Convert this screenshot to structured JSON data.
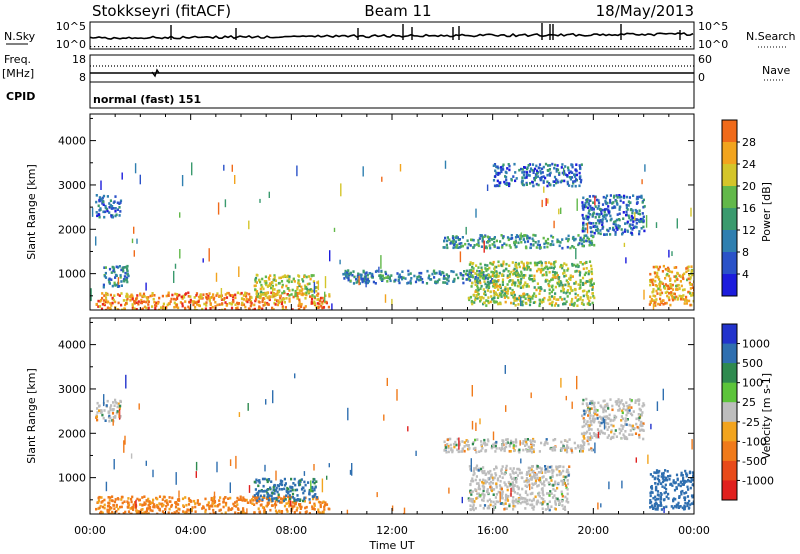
{
  "header": {
    "station": "Stokkseyri (fitACF)",
    "beam": "Beam 11",
    "date": "18/May/2013"
  },
  "strip": {
    "nsky_label": "N.Sky",
    "nsearch_label": "N.Search",
    "freq_label": "Freq.",
    "freq_unit": "[MHz]",
    "nave_label": "Nave",
    "cpid_label": "CPID",
    "nsky_ticks": [
      "10^5",
      "10^0"
    ],
    "nsearch_ticks": [
      "10^5",
      "10^0"
    ],
    "freq_ticks": [
      "18",
      "8"
    ],
    "nave_ticks": [
      "60",
      "0"
    ],
    "cpid_text": "normal (fast) 151"
  },
  "chart_data": [
    {
      "type": "heatmap",
      "title": "",
      "xlabel": "Time UT",
      "ylabel": "Slant Range [km]",
      "x_ticks": [
        "00:00",
        "04:00",
        "08:00",
        "12:00",
        "16:00",
        "20:00",
        "00:00"
      ],
      "y_ticks": [
        "1000",
        "2000",
        "3000",
        "4000"
      ],
      "xlim": [
        0,
        24
      ],
      "ylim": [
        180,
        4600
      ],
      "colorbar": {
        "label": "Power [dB]",
        "ticks": [
          "4",
          "8",
          "12",
          "16",
          "20",
          "24",
          "28"
        ],
        "range": [
          0,
          30
        ]
      },
      "regions": [
        {
          "t": [
            0.2,
            1.2
          ],
          "r": [
            2300,
            2800
          ],
          "value": 6
        },
        {
          "t": [
            0.2,
            9.5
          ],
          "r": [
            200,
            600
          ],
          "value": 24
        },
        {
          "t": [
            6.5,
            9.0
          ],
          "r": [
            500,
            1000
          ],
          "value": 18
        },
        {
          "t": [
            0.5,
            1.5
          ],
          "r": [
            700,
            1200
          ],
          "value": 8
        },
        {
          "t": [
            10.0,
            16.0
          ],
          "r": [
            800,
            1100
          ],
          "value": 8
        },
        {
          "t": [
            14.0,
            20.0
          ],
          "r": [
            1600,
            1900
          ],
          "value": 10
        },
        {
          "t": [
            15.0,
            20.0
          ],
          "r": [
            300,
            1300
          ],
          "value": 16
        },
        {
          "t": [
            16.0,
            19.5
          ],
          "r": [
            3000,
            3500
          ],
          "value": 6
        },
        {
          "t": [
            19.5,
            22.0
          ],
          "r": [
            1900,
            2800
          ],
          "value": 6
        },
        {
          "t": [
            22.2,
            24.0
          ],
          "r": [
            300,
            1200
          ],
          "value": 22
        }
      ]
    },
    {
      "type": "heatmap",
      "title": "",
      "xlabel": "Time UT",
      "ylabel": "Slant Range [km]",
      "x_ticks": [
        "00:00",
        "04:00",
        "08:00",
        "12:00",
        "16:00",
        "20:00",
        "00:00"
      ],
      "y_ticks": [
        "1000",
        "2000",
        "3000",
        "4000"
      ],
      "xlim": [
        0,
        24
      ],
      "ylim": [
        180,
        4600
      ],
      "colorbar": {
        "label": "Velocity [m s-1]",
        "ticks": [
          "1000",
          "500",
          "100",
          "25",
          "-25",
          "-100",
          "-500",
          "-1000"
        ]
      },
      "regions": [
        {
          "t": [
            0.2,
            1.2
          ],
          "r": [
            2300,
            2800
          ],
          "value": 0
        },
        {
          "t": [
            0.2,
            9.5
          ],
          "r": [
            200,
            600
          ],
          "value": -150
        },
        {
          "t": [
            6.5,
            9.0
          ],
          "r": [
            500,
            1000
          ],
          "value": 150
        },
        {
          "t": [
            14.0,
            20.0
          ],
          "r": [
            1600,
            1900
          ],
          "value": 0
        },
        {
          "t": [
            15.0,
            19.0
          ],
          "r": [
            300,
            1300
          ],
          "value": 0
        },
        {
          "t": [
            19.5,
            22.0
          ],
          "r": [
            1900,
            2800
          ],
          "value": 0
        },
        {
          "t": [
            22.2,
            24.0
          ],
          "r": [
            300,
            1200
          ],
          "value": 300
        }
      ]
    }
  ]
}
